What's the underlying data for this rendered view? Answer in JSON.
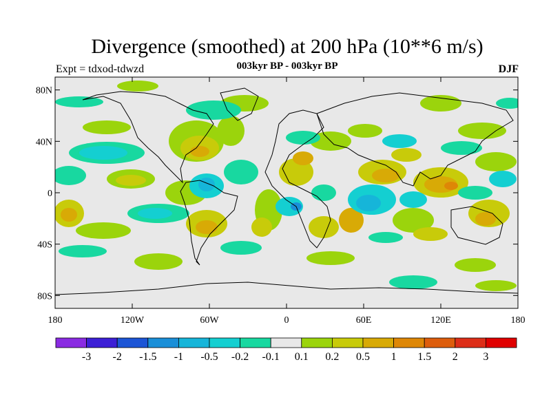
{
  "title": "Divergence (smoothed) at 200 hPa (10**6 m/s)",
  "left_label": "Expt = tdxod-tdwzd",
  "center_label": "003kyr BP - 003kyr BP",
  "right_label": "DJF",
  "map": {
    "lon_range": [
      -180,
      180
    ],
    "lat_range": [
      -90,
      90
    ],
    "x_ticks": [
      {
        "value": -180,
        "label": "180"
      },
      {
        "value": -120,
        "label": "120W"
      },
      {
        "value": -60,
        "label": "60W"
      },
      {
        "value": 0,
        "label": "0"
      },
      {
        "value": 60,
        "label": "60E"
      },
      {
        "value": 120,
        "label": "120E"
      },
      {
        "value": 180,
        "label": "180"
      }
    ],
    "y_ticks": [
      {
        "value": 80,
        "label": "80N"
      },
      {
        "value": 40,
        "label": "40N"
      },
      {
        "value": 0,
        "label": "0"
      },
      {
        "value": -40,
        "label": "40S"
      },
      {
        "value": -80,
        "label": "80S"
      }
    ],
    "background_color": "#e8e8e8"
  },
  "colorbar": {
    "colors": [
      "#8a2be2",
      "#3c1fd6",
      "#1c55d6",
      "#1a8fd8",
      "#16b5d9",
      "#14cfd1",
      "#18d8a0",
      "#e8e8e8",
      "#9bd40c",
      "#c8cb0a",
      "#d8aa06",
      "#de8706",
      "#dd5d0c",
      "#dd2e18",
      "#e00000"
    ],
    "labels": [
      "-3",
      "-2",
      "-1.5",
      "-1",
      "-0.5",
      "-0.2",
      "-0.1",
      "0.1",
      "0.2",
      "0.5",
      "1",
      "1.5",
      "2",
      "3"
    ]
  }
}
